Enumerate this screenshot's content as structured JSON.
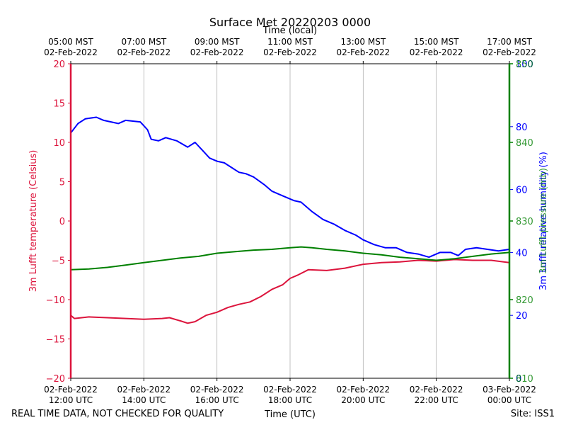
{
  "chart_data": {
    "type": "line",
    "title": "Surface Met 20220203 0000",
    "top_axis_label": "Time (local)",
    "xlabel": "Time (UTC)",
    "footer_left": "REAL TIME DATA, NOT CHECKED FOR QUALITY",
    "footer_right": "Site: ISS1",
    "x_range_hours": [
      12,
      24
    ],
    "bottom_ticks": [
      {
        "h": 12,
        "l1": "02-Feb-2022",
        "l2": "12:00 UTC"
      },
      {
        "h": 14,
        "l1": "02-Feb-2022",
        "l2": "14:00 UTC"
      },
      {
        "h": 16,
        "l1": "02-Feb-2022",
        "l2": "16:00 UTC"
      },
      {
        "h": 18,
        "l1": "02-Feb-2022",
        "l2": "18:00 UTC"
      },
      {
        "h": 20,
        "l1": "02-Feb-2022",
        "l2": "20:00 UTC"
      },
      {
        "h": 22,
        "l1": "02-Feb-2022",
        "l2": "22:00 UTC"
      },
      {
        "h": 24,
        "l1": "03-Feb-2022",
        "l2": "00:00 UTC"
      }
    ],
    "top_ticks": [
      {
        "h": 12,
        "l1": "05:00 MST",
        "l2": "02-Feb-2022"
      },
      {
        "h": 14,
        "l1": "07:00 MST",
        "l2": "02-Feb-2022"
      },
      {
        "h": 16,
        "l1": "09:00 MST",
        "l2": "02-Feb-2022"
      },
      {
        "h": 18,
        "l1": "11:00 MST",
        "l2": "02-Feb-2022"
      },
      {
        "h": 20,
        "l1": "13:00 MST",
        "l2": "02-Feb-2022"
      },
      {
        "h": 22,
        "l1": "15:00 MST",
        "l2": "02-Feb-2022"
      },
      {
        "h": 24,
        "l1": "17:00 MST",
        "l2": "02-Feb-2022"
      }
    ],
    "left_axis": {
      "label": "3m Lufft temperature (Celsius)",
      "color": "#dc143c",
      "ylim": [
        -20,
        20
      ],
      "ticks": [
        {
          "v": 20,
          "t": "20"
        },
        {
          "v": 15,
          "t": "15"
        },
        {
          "v": 10,
          "t": "10"
        },
        {
          "v": 5,
          "t": "5"
        },
        {
          "v": 0,
          "t": "0"
        },
        {
          "v": -5,
          "t": "−5"
        },
        {
          "v": -10,
          "t": "−10"
        },
        {
          "v": -15,
          "t": "−15"
        },
        {
          "v": -20,
          "t": "−20"
        }
      ]
    },
    "right_axis_rh": {
      "label": "3m Lufft relative humidity (%)",
      "color": "#0000ff",
      "ylim": [
        0,
        100
      ],
      "ticks": [
        {
          "v": 0,
          "t": "0"
        },
        {
          "v": 20,
          "t": "20"
        },
        {
          "v": 40,
          "t": "40"
        },
        {
          "v": 60,
          "t": "60"
        },
        {
          "v": 80,
          "t": "80"
        },
        {
          "v": 100,
          "t": "100"
        }
      ]
    },
    "right_axis_p": {
      "label": "3m Lufft pressure (mb)",
      "color": "#008000",
      "ylim": [
        810,
        850
      ],
      "ticks": [
        {
          "v": 810,
          "t": "810"
        },
        {
          "v": 820,
          "t": "820"
        },
        {
          "v": 830,
          "t": "830"
        },
        {
          "v": 840,
          "t": "840"
        },
        {
          "v": 850,
          "t": "850"
        }
      ]
    },
    "series": [
      {
        "name": "3m Lufft temperature",
        "axis": "left",
        "color": "#dc143c",
        "x": [
          12.0,
          12.1,
          12.5,
          13.0,
          13.5,
          14.0,
          14.5,
          14.7,
          15.0,
          15.2,
          15.4,
          15.7,
          16.0,
          16.3,
          16.6,
          16.9,
          17.2,
          17.5,
          17.8,
          18.0,
          18.2,
          18.5,
          19.0,
          19.5,
          20.0,
          20.5,
          21.0,
          21.5,
          22.0,
          22.5,
          23.0,
          23.5,
          24.0
        ],
        "values": [
          -12.0,
          -12.4,
          -12.2,
          -12.3,
          -12.4,
          -12.5,
          -12.4,
          -12.3,
          -12.7,
          -13.0,
          -12.8,
          -12.0,
          -11.6,
          -11.0,
          -10.6,
          -10.3,
          -9.6,
          -8.7,
          -8.1,
          -7.3,
          -6.9,
          -6.2,
          -6.3,
          -6.0,
          -5.5,
          -5.3,
          -5.2,
          -5.0,
          -5.1,
          -4.9,
          -5.0,
          -5.0,
          -5.3
        ]
      },
      {
        "name": "3m Lufft relative humidity",
        "axis": "rh",
        "color": "#0000ff",
        "x": [
          12.0,
          12.2,
          12.4,
          12.7,
          12.9,
          13.3,
          13.5,
          13.9,
          14.1,
          14.2,
          14.4,
          14.6,
          14.9,
          15.2,
          15.4,
          15.6,
          15.8,
          16.0,
          16.2,
          16.4,
          16.6,
          16.8,
          17.0,
          17.3,
          17.5,
          17.7,
          17.9,
          18.1,
          18.3,
          18.6,
          18.9,
          19.2,
          19.5,
          19.8,
          20.0,
          20.3,
          20.6,
          20.9,
          21.2,
          21.5,
          21.8,
          22.1,
          22.4,
          22.6,
          22.8,
          23.1,
          23.4,
          23.7,
          24.0
        ],
        "values": [
          78,
          81,
          82.5,
          83,
          82,
          81,
          82,
          81.5,
          79,
          76,
          75.5,
          76.5,
          75.5,
          73.5,
          75,
          72.5,
          70,
          69,
          68.5,
          67,
          65.5,
          65,
          64,
          61.5,
          59.5,
          58.5,
          57.5,
          56.5,
          56,
          53,
          50.5,
          49,
          47,
          45.5,
          44,
          42.5,
          41.5,
          41.5,
          40,
          39.5,
          38.5,
          40,
          40,
          39,
          41,
          41.5,
          41,
          40.5,
          41
        ]
      },
      {
        "name": "3m Lufft pressure",
        "axis": "p",
        "color": "#008000",
        "x": [
          12.0,
          12.5,
          13.0,
          13.5,
          14.0,
          14.5,
          15.0,
          15.5,
          16.0,
          16.5,
          17.0,
          17.5,
          18.0,
          18.3,
          18.6,
          19.0,
          19.5,
          20.0,
          20.5,
          21.0,
          21.5,
          22.0,
          22.5,
          23.0,
          23.5,
          24.0
        ],
        "values": [
          823.8,
          823.9,
          824.1,
          824.4,
          824.7,
          825.0,
          825.3,
          825.5,
          825.9,
          826.1,
          826.3,
          826.4,
          826.6,
          826.7,
          826.6,
          826.4,
          826.2,
          825.9,
          825.7,
          825.4,
          825.2,
          825.0,
          825.2,
          825.5,
          825.8,
          826.0
        ]
      }
    ]
  }
}
